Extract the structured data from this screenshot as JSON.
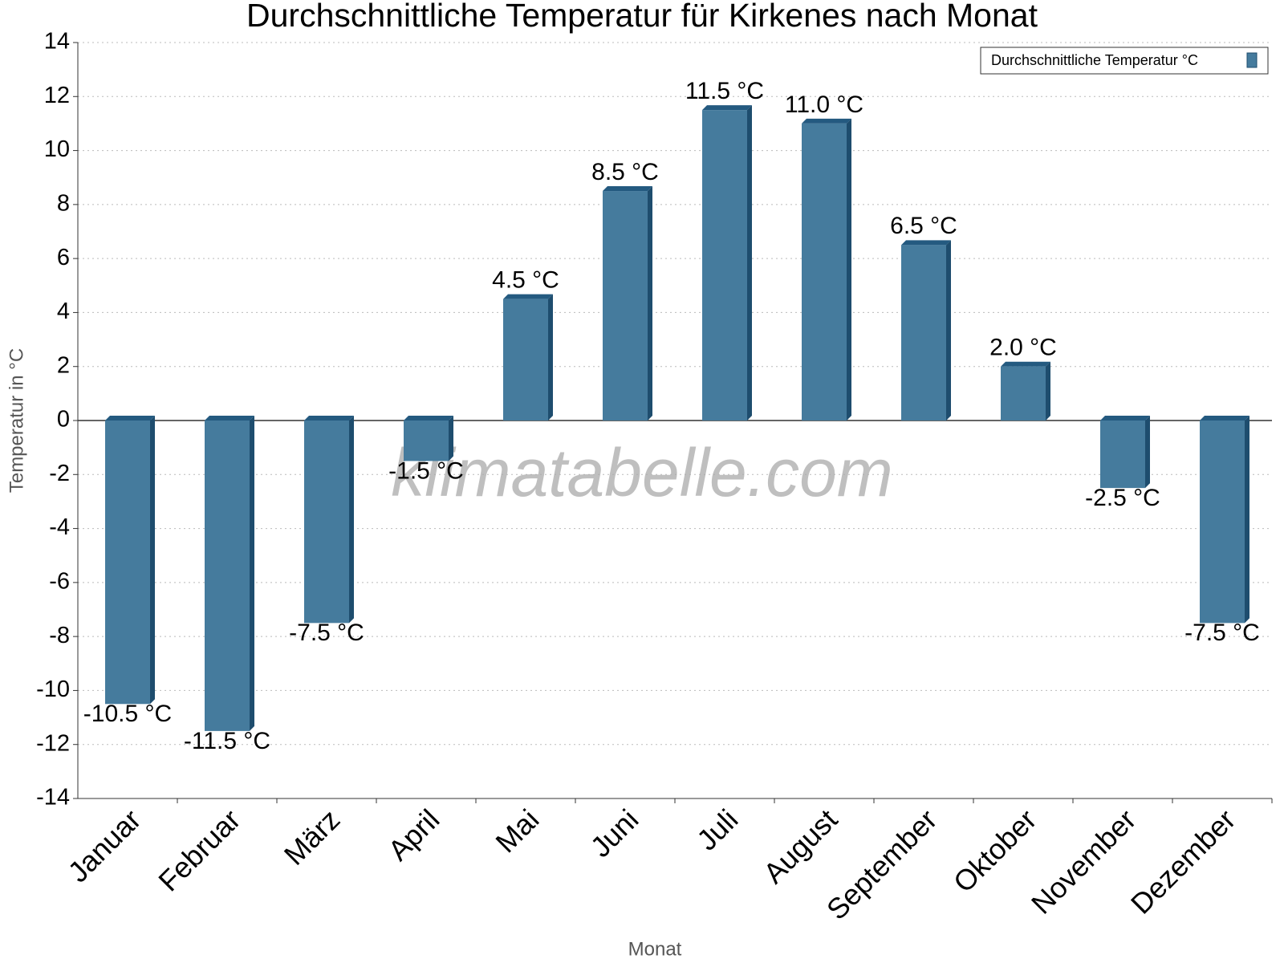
{
  "chart_data": {
    "type": "bar",
    "title": "Durchschnittliche Temperatur für Kirkenes nach Monat",
    "x_label": "Monat",
    "y_label": "Temperatur in °C",
    "watermark": "klimatabelle.com",
    "categories": [
      "Januar",
      "Februar",
      "März",
      "April",
      "Mai",
      "Juni",
      "Juli",
      "August",
      "September",
      "Oktober",
      "November",
      "Dezember"
    ],
    "series": [
      {
        "name": "Durchschnittliche Temperatur °C",
        "color": "#457b9d",
        "values": [
          -10.5,
          -11.5,
          -7.5,
          -1.5,
          4.5,
          8.5,
          11.5,
          11.0,
          6.5,
          2.0,
          -2.5,
          -7.5
        ],
        "value_labels": [
          "-10.5 °C",
          "-11.5 °C",
          "-7.5 °C",
          "-1.5 °C",
          "4.5 °C",
          "8.5 °C",
          "11.5 °C",
          "11.0 °C",
          "6.5 °C",
          "2.0 °C",
          "-2.5 °C",
          "-7.5 °C"
        ]
      }
    ],
    "ylim": [
      -14,
      14
    ],
    "yticks": [
      -14,
      -12,
      -10,
      -8,
      -6,
      -4,
      -2,
      0,
      2,
      4,
      6,
      8,
      10,
      12,
      14
    ],
    "grid": true,
    "legend": "upper right"
  }
}
